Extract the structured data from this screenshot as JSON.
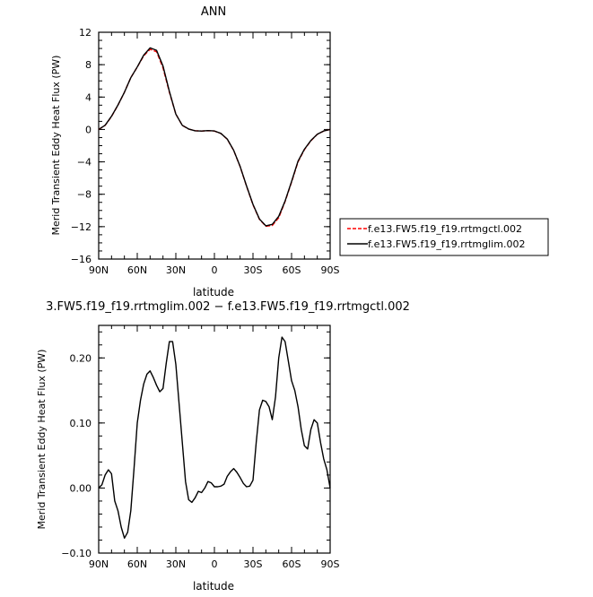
{
  "chart_data": [
    {
      "type": "line",
      "title": "ANN",
      "xlabel": "latitude",
      "ylabel": "Merid Transient Eddy Heat Flux (PW)",
      "x_ticks": [
        "90N",
        "60N",
        "30N",
        "0",
        "30S",
        "60S",
        "90S"
      ],
      "y_ticks": [
        "12",
        "8",
        "4",
        "0",
        "−4",
        "−8",
        "−12",
        "−16"
      ],
      "xlim": [
        90,
        -90
      ],
      "ylim": [
        -16,
        12
      ],
      "grid": false,
      "legend_position": "right",
      "x": [
        90,
        85,
        80,
        75,
        70,
        65,
        60,
        55,
        50,
        45,
        40,
        35,
        30,
        25,
        20,
        15,
        10,
        5,
        0,
        -5,
        -10,
        -15,
        -20,
        -25,
        -30,
        -35,
        -40,
        -45,
        -50,
        -55,
        -60,
        -65,
        -70,
        -75,
        -80,
        -85,
        -90
      ],
      "series": [
        {
          "name": "f.e13.FW5.f19_f19.rrtmgctl.002",
          "color": "#ff0000",
          "dashed": true,
          "values": [
            0.0,
            0.5,
            1.6,
            3.0,
            4.6,
            6.4,
            7.7,
            9.1,
            9.9,
            9.6,
            7.6,
            4.6,
            1.9,
            0.5,
            0.05,
            -0.15,
            -0.2,
            -0.15,
            -0.2,
            -0.5,
            -1.2,
            -2.6,
            -4.6,
            -7.0,
            -9.3,
            -11.1,
            -11.95,
            -11.85,
            -10.9,
            -8.9,
            -6.5,
            -4.0,
            -2.5,
            -1.4,
            -0.6,
            -0.2,
            0.0
          ]
        },
        {
          "name": "f.e13.FW5.f19_f19.rrtmglim.002",
          "color": "#000000",
          "dashed": false,
          "values": [
            0.0,
            0.52,
            1.63,
            3.02,
            4.6,
            6.39,
            7.72,
            9.18,
            10.07,
            9.78,
            7.83,
            4.71,
            1.9,
            0.51,
            0.06,
            -0.16,
            -0.2,
            -0.14,
            -0.19,
            -0.48,
            -1.18,
            -2.58,
            -4.58,
            -6.97,
            -9.25,
            -11.05,
            -11.89,
            -11.72,
            -10.72,
            -8.83,
            -6.43,
            -3.92,
            -2.44,
            -1.37,
            -0.58,
            -0.19,
            0.0
          ]
        }
      ]
    },
    {
      "type": "line",
      "title": "3.FW5.f19_f19.rrtmglim.002 − f.e13.FW5.f19_f19.rrtmgctl.002",
      "xlabel": "latitude",
      "ylabel": "Merid Transient Eddy Heat Flux (PW)",
      "x_ticks": [
        "90N",
        "60N",
        "30N",
        "0",
        "30S",
        "60S",
        "90S"
      ],
      "y_ticks": [
        "0.20",
        "0.10",
        "0.00",
        "−0.10"
      ],
      "xlim": [
        90,
        -90
      ],
      "ylim": [
        -0.1,
        0.25
      ],
      "grid": false,
      "x": [
        90,
        87.5,
        85,
        82.5,
        80,
        77.5,
        75,
        72.5,
        70,
        67.5,
        65,
        62.5,
        60,
        57.5,
        55,
        52.5,
        50,
        47.5,
        45,
        42.5,
        40,
        37.5,
        35,
        32.5,
        30,
        27.5,
        25,
        22.5,
        20,
        17.5,
        15,
        12.5,
        10,
        7.5,
        5,
        2.5,
        0,
        -2.5,
        -5,
        -7.5,
        -10,
        -12.5,
        -15,
        -17.5,
        -20,
        -22.5,
        -25,
        -27.5,
        -30,
        -32.5,
        -35,
        -37.5,
        -40,
        -42.5,
        -45,
        -47.5,
        -50,
        -52.5,
        -55,
        -57.5,
        -60,
        -62.5,
        -65,
        -67.5,
        -70,
        -72.5,
        -75,
        -77.5,
        -80,
        -82.5,
        -85,
        -87.5,
        -90
      ],
      "series": [
        {
          "name": "",
          "color": "#000000",
          "values": [
            0.0,
            0.005,
            0.02,
            0.028,
            0.022,
            -0.02,
            -0.035,
            -0.06,
            -0.077,
            -0.068,
            -0.035,
            0.03,
            0.1,
            0.135,
            0.16,
            0.175,
            0.18,
            0.17,
            0.158,
            0.148,
            0.153,
            0.192,
            0.225,
            0.225,
            0.19,
            0.13,
            0.07,
            0.01,
            -0.018,
            -0.022,
            -0.015,
            -0.005,
            -0.007,
            0.0,
            0.01,
            0.008,
            0.002,
            0.002,
            0.003,
            0.006,
            0.018,
            0.025,
            0.03,
            0.024,
            0.016,
            0.007,
            0.002,
            0.003,
            0.012,
            0.07,
            0.12,
            0.135,
            0.133,
            0.125,
            0.105,
            0.14,
            0.2,
            0.232,
            0.225,
            0.195,
            0.165,
            0.15,
            0.125,
            0.09,
            0.065,
            0.06,
            0.09,
            0.105,
            0.1,
            0.07,
            0.045,
            0.028,
            0.0
          ]
        }
      ]
    }
  ]
}
